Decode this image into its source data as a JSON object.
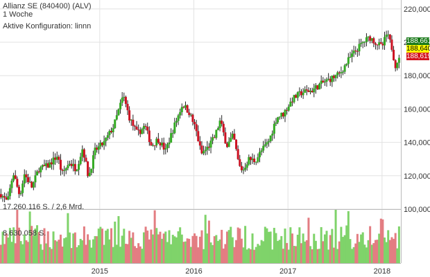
{
  "header": {
    "title": "Allianz SE (840400) (ALV)",
    "period": "1 Woche",
    "config": "Aktive Konfiguration: linnn"
  },
  "price_badges": [
    {
      "value": "188,661",
      "bg": "#1a7a1a",
      "fg": "#ffffff"
    },
    {
      "value": "188,640",
      "bg": "#ffff00",
      "fg": "#000000"
    },
    {
      "value": "188,619",
      "bg": "#d4141e",
      "fg": "#ffffff"
    }
  ],
  "volume_info": {
    "total": "17.260.116 S. / 2,6 Mrd.",
    "scale": "8.630.058 S."
  },
  "colors": {
    "up": "#33aa22",
    "down": "#cc1122",
    "up_vol": "#7fd36a",
    "down_vol": "#e37d82"
  },
  "chart_data": {
    "type": "candlestick",
    "price_axis": {
      "ticks": [
        100000,
        120000,
        140000,
        160000,
        180000,
        200000,
        220000
      ],
      "tick_labels": [
        "100,000",
        "120,000",
        "140,000",
        "160,000",
        "180,000",
        "200,000",
        "220,000"
      ],
      "ylim": [
        100000,
        222000
      ]
    },
    "x_axis": {
      "ticks": [
        "2015",
        "2016",
        "2017",
        "2018"
      ],
      "xlim": [
        2013.94,
        2018.2
      ]
    },
    "grid": true,
    "price_path": [
      [
        2013.95,
        109000
      ],
      [
        2014.02,
        104000
      ],
      [
        2014.08,
        122000
      ],
      [
        2014.15,
        108000
      ],
      [
        2014.2,
        121000
      ],
      [
        2014.28,
        113000
      ],
      [
        2014.35,
        124000
      ],
      [
        2014.45,
        126000
      ],
      [
        2014.55,
        132000
      ],
      [
        2014.6,
        121000
      ],
      [
        2014.68,
        128000
      ],
      [
        2014.75,
        124000
      ],
      [
        2014.82,
        137000
      ],
      [
        2014.88,
        119000
      ],
      [
        2014.95,
        135000
      ],
      [
        2015.05,
        140000
      ],
      [
        2015.15,
        150000
      ],
      [
        2015.25,
        168000
      ],
      [
        2015.32,
        154000
      ],
      [
        2015.4,
        145000
      ],
      [
        2015.48,
        150000
      ],
      [
        2015.55,
        138000
      ],
      [
        2015.62,
        142000
      ],
      [
        2015.7,
        135000
      ],
      [
        2015.78,
        148000
      ],
      [
        2015.88,
        163000
      ],
      [
        2015.95,
        158000
      ],
      [
        2016.02,
        148000
      ],
      [
        2016.08,
        133000
      ],
      [
        2016.15,
        137000
      ],
      [
        2016.22,
        143000
      ],
      [
        2016.28,
        153000
      ],
      [
        2016.35,
        138000
      ],
      [
        2016.42,
        144000
      ],
      [
        2016.48,
        126000
      ],
      [
        2016.52,
        123000
      ],
      [
        2016.58,
        130000
      ],
      [
        2016.65,
        129000
      ],
      [
        2016.72,
        135000
      ],
      [
        2016.8,
        141000
      ],
      [
        2016.88,
        155000
      ],
      [
        2016.95,
        157000
      ],
      [
        2017.05,
        166000
      ],
      [
        2017.15,
        170000
      ],
      [
        2017.25,
        171000
      ],
      [
        2017.35,
        175000
      ],
      [
        2017.45,
        178000
      ],
      [
        2017.55,
        181000
      ],
      [
        2017.65,
        190000
      ],
      [
        2017.72,
        195000
      ],
      [
        2017.8,
        200000
      ],
      [
        2017.87,
        203000
      ],
      [
        2017.93,
        200000
      ],
      [
        2018.0,
        197000
      ],
      [
        2018.05,
        205000
      ],
      [
        2018.1,
        198000
      ],
      [
        2018.14,
        186000
      ],
      [
        2018.17,
        190000
      ],
      [
        2018.19,
        188640
      ]
    ]
  }
}
